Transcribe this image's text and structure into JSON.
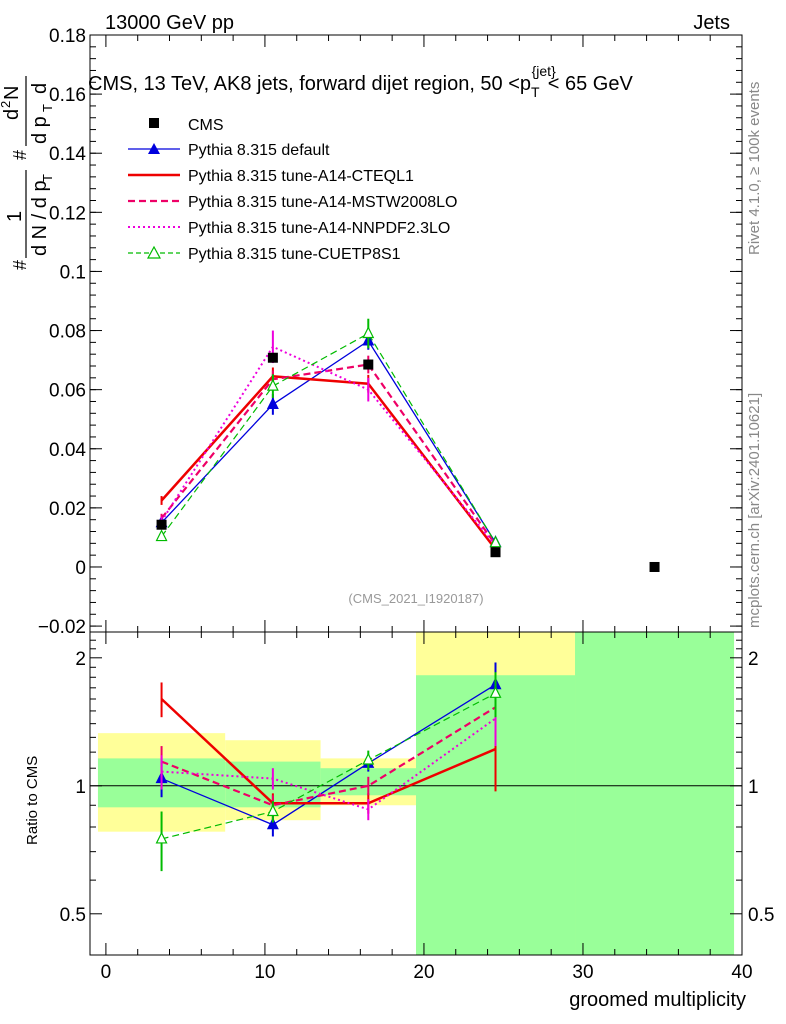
{
  "header": {
    "left": "13000 GeV pp",
    "right": "Jets"
  },
  "chart_data": {
    "type": "line",
    "title": "CMS, 13 TeV, AK8 jets, forward dijet region, 50 <p_T^{jet}< 65 GeV",
    "title_parts": {
      "main": "CMS, 13 TeV, AK8 jets, forward dijet region, 50 <p",
      "sub": "T",
      "sup": "{jet}",
      "tail": "< 65 GeV"
    },
    "ylabel": "1/dN/dp_T # d^2N/dp_T d#",
    "ylabel_parts": {
      "one": "1",
      "hash1": "#",
      "dN": "d N / d p",
      "T1": "T",
      "hash2": "#",
      "d2N": "d",
      "sq": "2",
      "N": "N",
      "dpT": "d p",
      "T2": "T",
      "d": "d"
    },
    "xlabel": "groomed multiplicity",
    "xlim": [
      -1,
      40
    ],
    "ylim": [
      -0.022,
      0.18
    ],
    "yticks": [
      -0.02,
      0,
      0.02,
      0.04,
      0.06,
      0.08,
      0.1,
      0.12,
      0.14,
      0.16,
      0.18
    ],
    "yticklabels": [
      "−0.02",
      "0",
      "0.02",
      "0.04",
      "0.06",
      "0.08",
      "0.1",
      "0.12",
      "0.14",
      "0.16",
      "0.18"
    ],
    "xticks": [
      0,
      10,
      20,
      30,
      40
    ],
    "xticklabels": [
      "0",
      "10",
      "20",
      "30",
      "40"
    ],
    "watermark": "(CMS_2021_I1920187)",
    "side_labels": {
      "rivet": "Rivet 4.1.0, ≥ 100k events",
      "mcplots": "mcplots.cern.ch [arXiv:2401.10621]"
    },
    "data": {
      "name": "CMS",
      "points": [
        {
          "x": 3.5,
          "y": 0.0143
        },
        {
          "x": 10.5,
          "y": 0.0708
        },
        {
          "x": 16.5,
          "y": 0.0685
        },
        {
          "x": 24.5,
          "y": 0.005
        },
        {
          "x": 34.5,
          "y": 0.0
        }
      ]
    },
    "series": [
      {
        "name": "Pythia 8.315 default",
        "color": "#0000dd",
        "style": "solid",
        "marker": "triangle-filled",
        "x": [
          3.5,
          10.5,
          16.5,
          24.5
        ],
        "y": [
          0.015,
          0.055,
          0.0765,
          0.0083
        ],
        "yerr": [
          0.0015,
          0.0035,
          0.003,
          0.001
        ],
        "ratio": [
          1.04,
          0.81,
          1.13,
          1.73
        ],
        "ratio_err": [
          0.1,
          0.05,
          0.05,
          0.22
        ]
      },
      {
        "name": "Pythia 8.315 tune-A14-CTEQL1",
        "color": "#ee0000",
        "style": "solid",
        "marker": "none",
        "x": [
          3.5,
          10.5,
          16.5,
          24.5
        ],
        "y": [
          0.0225,
          0.0645,
          0.062,
          0.006
        ],
        "yerr": [
          0.0015,
          0.003,
          0.003,
          0.001
        ],
        "ratio": [
          1.6,
          0.91,
          0.91,
          1.22
        ],
        "ratio_err": [
          0.15,
          0.05,
          0.05,
          0.25
        ]
      },
      {
        "name": "Pythia 8.315 tune-A14-MSTW2008LO",
        "color": "#ee0066",
        "style": "dashed",
        "marker": "none",
        "x": [
          3.5,
          10.5,
          16.5,
          24.5
        ],
        "y": [
          0.0165,
          0.0635,
          0.0685,
          0.0075
        ],
        "yerr": [
          0.0015,
          0.003,
          0.003,
          0.001
        ],
        "ratio": [
          1.14,
          0.9,
          1.0,
          1.53
        ],
        "ratio_err": [
          0.1,
          0.05,
          0.05,
          0.2
        ]
      },
      {
        "name": "Pythia 8.315 tune-A14-NNPDF2.3LO",
        "color": "#ee00dd",
        "style": "dotted",
        "marker": "none",
        "x": [
          3.5,
          10.5,
          16.5,
          24.5
        ],
        "y": [
          0.0155,
          0.0745,
          0.06,
          0.0072
        ],
        "yerr": [
          0.0015,
          0.0055,
          0.004,
          0.001
        ],
        "ratio": [
          1.08,
          1.04,
          0.88,
          1.44
        ],
        "ratio_err": [
          0.1,
          0.06,
          0.05,
          0.2
        ]
      },
      {
        "name": "Pythia 8.315 tune-CUETP8S1",
        "color": "#00bb00",
        "style": "dashed",
        "marker": "triangle-open",
        "x": [
          3.5,
          10.5,
          16.5,
          24.5
        ],
        "y": [
          0.0103,
          0.0612,
          0.079,
          0.0082
        ],
        "yerr": [
          0.0012,
          0.004,
          0.005,
          0.001
        ],
        "ratio": [
          0.75,
          0.87,
          1.15,
          1.65
        ],
        "ratio_err": [
          0.12,
          0.05,
          0.06,
          0.2
        ]
      }
    ],
    "ratio_panel": {
      "ylabel": "Ratio to CMS",
      "ylim": [
        0.4,
        2.3
      ],
      "log": true,
      "yticks": [
        0.5,
        1,
        2
      ],
      "yticklabels": [
        "0.5",
        "1",
        "2"
      ],
      "bands": [
        {
          "x0": -0.5,
          "x1": 7.5,
          "yellow": [
            0.78,
            1.33
          ],
          "green": [
            0.89,
            1.16
          ]
        },
        {
          "x0": 7.5,
          "x1": 13.5,
          "yellow": [
            0.83,
            1.28
          ],
          "green": [
            0.89,
            1.14
          ]
        },
        {
          "x0": 13.5,
          "x1": 19.5,
          "yellow": [
            0.9,
            1.16
          ],
          "green": [
            0.95,
            1.1
          ]
        },
        {
          "x0": 19.5,
          "x1": 29.5,
          "yellow": [
            0.4,
            2.3
          ],
          "green": [
            0.4,
            1.82
          ]
        },
        {
          "x0": 29.5,
          "x1": 39.5,
          "yellow": [
            0.4,
            2.3
          ],
          "green": [
            0.4,
            2.3
          ]
        }
      ]
    }
  },
  "colors": {
    "yellow": "#ffff99",
    "green": "#99ff99",
    "gray_text": "#999999",
    "side_text": "#888888"
  }
}
